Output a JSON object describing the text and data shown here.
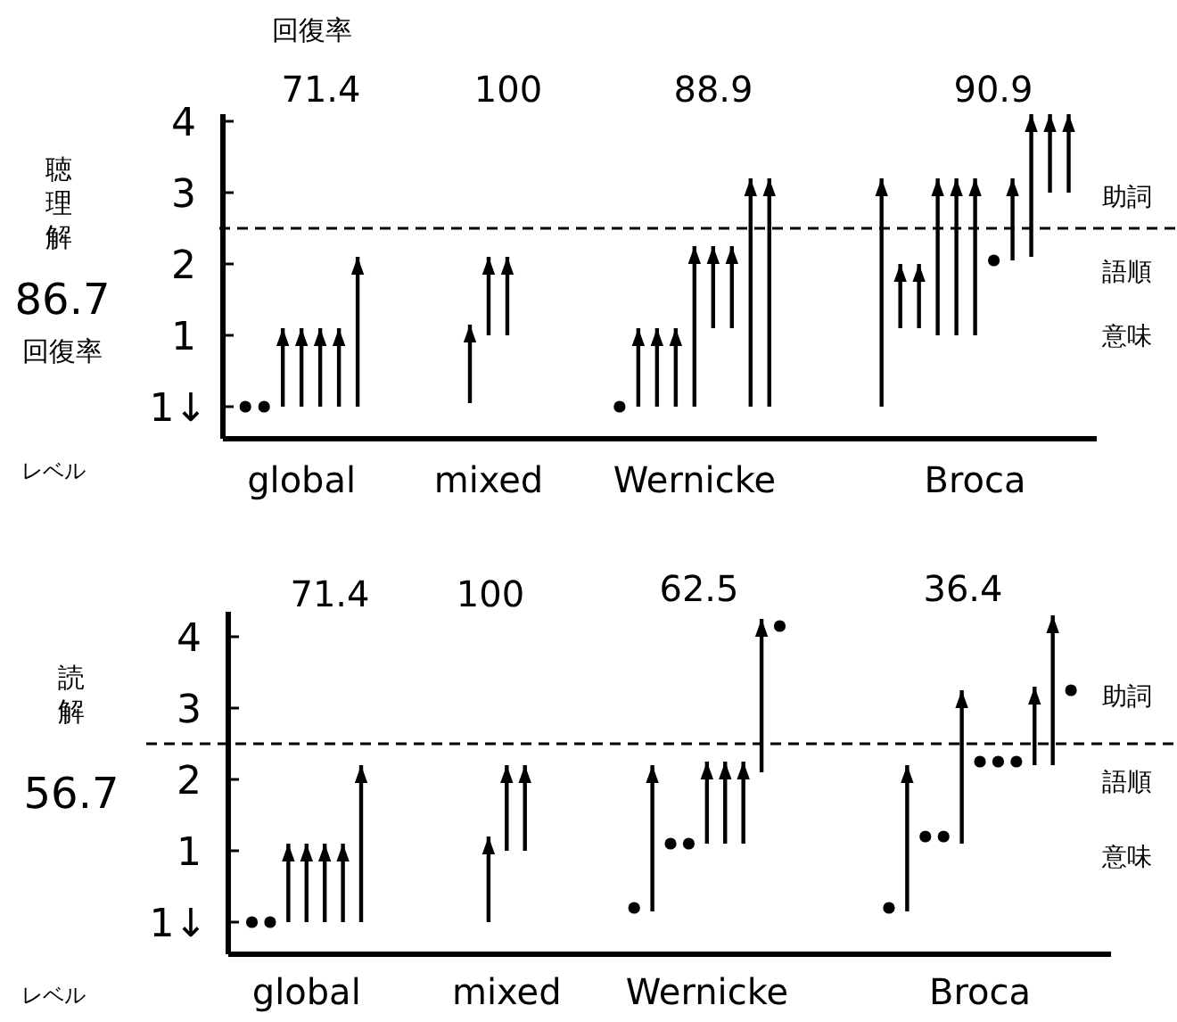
{
  "chart_data": [
    {
      "type": "bar",
      "ylabel": "聴理解",
      "categories": [
        null,
        null,
        null,
        "global",
        null,
        null,
        null,
        null,
        null,
        null,
        null,
        null,
        null,
        "mixed",
        null,
        null,
        null,
        null,
        null,
        null,
        null,
        null,
        null,
        null,
        "Wernicke",
        null,
        null,
        null,
        null,
        null,
        null,
        null,
        null,
        null,
        null,
        null,
        null,
        null,
        null,
        "Broca",
        null,
        null,
        null,
        null,
        null
      ],
      "series": [
        {
          "type": "bar",
          "color": "#000000",
          "base": [
            null,
            null,
            0,
            0,
            0,
            0,
            0,
            null,
            null,
            null,
            null,
            null,
            0.05,
            1.0,
            1.0,
            null,
            null,
            null,
            null,
            null,
            null,
            0,
            0,
            0,
            0,
            1.1,
            1.1,
            0,
            0,
            null,
            null,
            null,
            null,
            null,
            0,
            1.1,
            1.1,
            1.0,
            1.0,
            1.0,
            null,
            2.05,
            2.1,
            3.0,
            3.0
          ],
          "values": [
            null,
            null,
            1.1,
            1.1,
            1.1,
            1.1,
            2.1,
            null,
            null,
            null,
            null,
            null,
            1.1,
            1.1,
            1.1,
            null,
            null,
            null,
            null,
            null,
            null,
            1.1,
            1.1,
            1.1,
            2.25,
            1.15,
            1.15,
            3.2,
            3.2,
            null,
            null,
            null,
            null,
            null,
            3.2,
            0.9,
            0.9,
            2.2,
            2.2,
            2.2,
            null,
            1.15,
            2.0,
            1.1,
            1.1
          ]
        },
        {
          "type": "scatter",
          "color": "#000000",
          "marker": "circle",
          "values": [
            0,
            0,
            null,
            null,
            null,
            null,
            null,
            null,
            null,
            null,
            null,
            null,
            null,
            null,
            null,
            null,
            null,
            null,
            null,
            null,
            0,
            null,
            null,
            null,
            null,
            null,
            null,
            null,
            null,
            null,
            null,
            null,
            null,
            null,
            null,
            null,
            null,
            null,
            null,
            null,
            2.05,
            null,
            null,
            null,
            null
          ]
        }
      ],
      "ylim": [
        -0.45,
        4.1
      ],
      "yticks": [
        {
          "value": 0,
          "label": null
        },
        1,
        2,
        3,
        4
      ],
      "ref_lines": [
        {
          "axis": "y",
          "value": 2.5,
          "line_style": "dashed"
        }
      ],
      "annotations": [
        "回復率",
        "86.7",
        "回復率",
        "レベル",
        "1↓",
        "71.4",
        "100",
        "88.9",
        "90.9",
        "助詞",
        "語順",
        "意味"
      ]
    },
    {
      "type": "bar",
      "ylabel": "読解",
      "categories": [
        null,
        null,
        null,
        "global",
        null,
        null,
        null,
        null,
        null,
        null,
        null,
        null,
        null,
        null,
        "mixed",
        null,
        null,
        null,
        null,
        null,
        null,
        null,
        null,
        null,
        null,
        "Wernicke",
        null,
        null,
        null,
        null,
        null,
        null,
        null,
        null,
        null,
        null,
        null,
        null,
        null,
        null,
        "Broca",
        null,
        null,
        null,
        null,
        null
      ],
      "series": [
        {
          "type": "bar",
          "color": "#000000",
          "base": [
            null,
            null,
            0,
            0,
            0,
            0,
            0,
            null,
            null,
            null,
            null,
            null,
            null,
            0,
            1.0,
            1.0,
            null,
            null,
            null,
            null,
            null,
            null,
            0.15,
            null,
            null,
            1.1,
            1.1,
            1.1,
            2.1,
            null,
            null,
            null,
            null,
            null,
            null,
            null,
            0.15,
            null,
            null,
            1.1,
            null,
            null,
            null,
            2.2,
            2.2,
            null
          ],
          "values": [
            null,
            null,
            1.1,
            1.1,
            1.1,
            1.1,
            2.2,
            null,
            null,
            null,
            null,
            null,
            null,
            1.2,
            1.2,
            1.2,
            null,
            null,
            null,
            null,
            null,
            null,
            2.05,
            null,
            null,
            1.15,
            1.15,
            1.15,
            2.15,
            null,
            null,
            null,
            null,
            null,
            null,
            null,
            2.05,
            null,
            null,
            2.15,
            null,
            null,
            null,
            1.1,
            2.1,
            null
          ]
        },
        {
          "type": "scatter",
          "color": "#000000",
          "marker": "circle",
          "values": [
            0,
            0,
            null,
            null,
            null,
            null,
            null,
            null,
            null,
            null,
            null,
            null,
            null,
            null,
            null,
            null,
            null,
            null,
            null,
            null,
            null,
            0.2,
            null,
            1.1,
            1.1,
            null,
            null,
            null,
            null,
            4.15,
            null,
            null,
            null,
            null,
            null,
            0.2,
            null,
            1.2,
            1.2,
            null,
            2.25,
            2.25,
            2.25,
            null,
            null,
            3.25
          ]
        }
      ],
      "ylim": [
        -0.45,
        4.35
      ],
      "yticks": [
        {
          "value": 0,
          "label": null
        },
        1,
        2,
        3,
        4
      ],
      "ref_lines": [
        {
          "axis": "y",
          "value": 2.5,
          "line_style": "dashed"
        }
      ],
      "annotations": [
        "56.7",
        "レベル",
        "1↓",
        "71.4",
        "100",
        "62.5",
        "36.4",
        "助詞",
        "語順",
        "意味"
      ]
    }
  ]
}
